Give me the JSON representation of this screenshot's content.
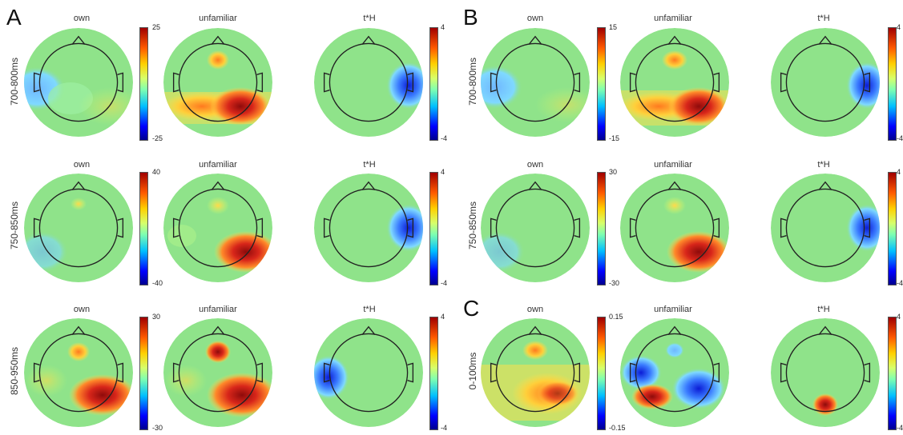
{
  "colors": {
    "deep_blue": "#0b1cd6",
    "blue": "#3a7bff",
    "cyan": "#7fd9ff",
    "green": "#8fe38a",
    "yellow": "#ffe04a",
    "orange": "#ff8a2a",
    "red": "#d8261a",
    "dark_red": "#8e0b0b"
  },
  "panels": [
    {
      "label": "A",
      "rows": [
        {
          "time": "700-800ms",
          "maps": [
            {
              "title": "own",
              "cbar": {
                "max": "25",
                "min": "-25"
              }
            },
            {
              "title": "unfamiliar"
            },
            {
              "title": "t*H",
              "cbar": {
                "max": "4",
                "min": "-4"
              }
            }
          ]
        },
        {
          "time": "750-850ms",
          "maps": [
            {
              "title": "own",
              "cbar": {
                "max": "40",
                "min": "-40"
              }
            },
            {
              "title": "unfamiliar"
            },
            {
              "title": "t*H",
              "cbar": {
                "max": "4",
                "min": "-4"
              }
            }
          ]
        },
        {
          "time": "850-950ms",
          "maps": [
            {
              "title": "own",
              "cbar": {
                "max": "30",
                "min": "-30"
              }
            },
            {
              "title": "unfamiliar"
            },
            {
              "title": "t*H",
              "cbar": {
                "max": "4",
                "min": "-4"
              }
            }
          ]
        }
      ]
    },
    {
      "label": "B",
      "rows": [
        {
          "time": "700-800ms",
          "maps": [
            {
              "title": "own",
              "cbar": {
                "max": "15",
                "min": "-15"
              }
            },
            {
              "title": "unfamiliar"
            },
            {
              "title": "t*H",
              "cbar": {
                "max": "4",
                "min": "-4"
              }
            }
          ]
        },
        {
          "time": "750-850ms",
          "maps": [
            {
              "title": "own",
              "cbar": {
                "max": "30",
                "min": "-30"
              }
            },
            {
              "title": "unfamiliar"
            },
            {
              "title": "t*H",
              "cbar": {
                "max": "4",
                "min": "-4"
              }
            }
          ]
        }
      ]
    },
    {
      "label": "C",
      "rows": [
        {
          "time": "0-100ms",
          "maps": [
            {
              "title": "own",
              "cbar": {
                "max": "0.15",
                "min": "-0.15"
              }
            },
            {
              "title": "unfamiliar"
            },
            {
              "title": "t*H",
              "cbar": {
                "max": "4",
                "min": "-4"
              }
            }
          ]
        }
      ]
    }
  ]
}
